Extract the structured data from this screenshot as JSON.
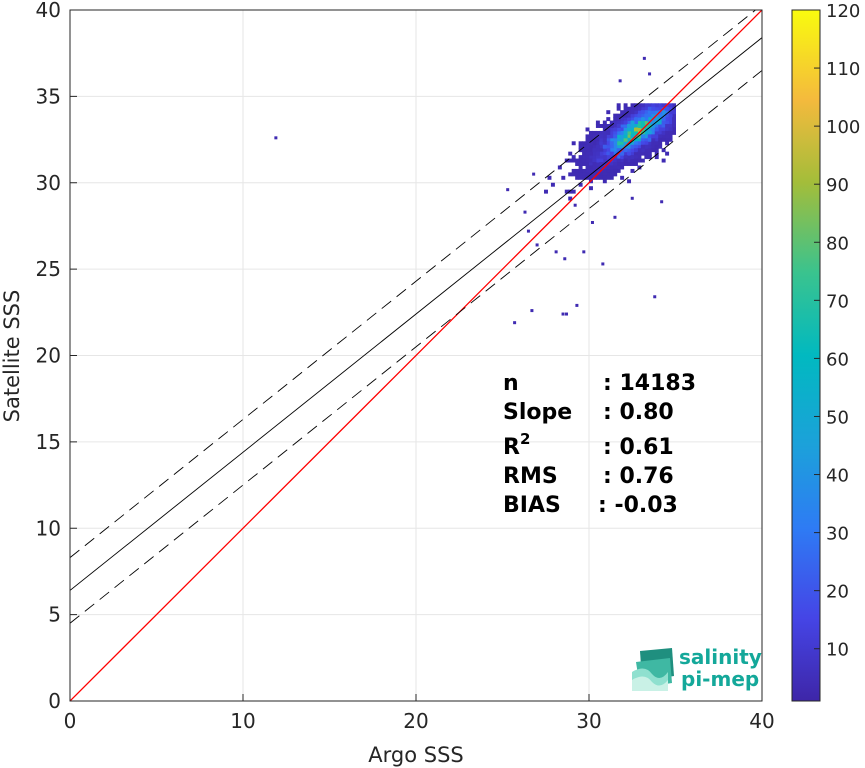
{
  "chart_data": {
    "type": "scatter",
    "subtype": "2d-density-histogram",
    "title": "",
    "xlabel": "Argo SSS",
    "ylabel": "Satellite SSS",
    "xlim": [
      0,
      40
    ],
    "ylim": [
      0,
      40
    ],
    "xticks": [
      0,
      10,
      20,
      30,
      40
    ],
    "yticks": [
      0,
      5,
      10,
      15,
      20,
      25,
      30,
      35,
      40
    ],
    "grid": true,
    "colorbar": {
      "colormap": "parula",
      "min": 1,
      "max": 120,
      "ticks": [
        10,
        20,
        30,
        40,
        50,
        60,
        70,
        80,
        90,
        100,
        110,
        120
      ]
    },
    "lines": [
      {
        "name": "1:1",
        "color": "#ff0000",
        "style": "solid",
        "x": [
          0,
          40
        ],
        "y": [
          0,
          40
        ]
      },
      {
        "name": "fit",
        "color": "#000000",
        "style": "solid",
        "x": [
          0,
          40
        ],
        "y": [
          6.4,
          38.4
        ]
      },
      {
        "name": "fit+",
        "color": "#000000",
        "style": "dashed",
        "x": [
          0,
          40
        ],
        "y": [
          8.3,
          40.3
        ]
      },
      {
        "name": "fit-",
        "color": "#000000",
        "style": "dashed",
        "x": [
          0,
          40
        ],
        "y": [
          4.5,
          36.5
        ]
      }
    ],
    "density": {
      "center": [
        32.8,
        33.0
      ],
      "spread_x": 1.25,
      "spread_y": 0.95,
      "correlation": 0.75,
      "count": 14183
    },
    "outliers": [
      [
        11.9,
        32.6
      ],
      [
        25.7,
        21.9
      ],
      [
        26.7,
        22.6
      ],
      [
        28.5,
        22.4
      ],
      [
        28.7,
        22.4
      ],
      [
        33.8,
        23.4
      ],
      [
        29.3,
        22.9
      ],
      [
        25.3,
        29.6
      ],
      [
        33.2,
        37.2
      ],
      [
        26.5,
        27.2
      ],
      [
        28.6,
        25.6
      ],
      [
        30.8,
        25.3
      ],
      [
        29.7,
        26.0
      ],
      [
        34.2,
        28.9
      ],
      [
        26.3,
        28.3
      ],
      [
        27.0,
        26.4
      ],
      [
        29.2,
        28.7
      ],
      [
        28.1,
        26.0
      ],
      [
        31.8,
        35.9
      ],
      [
        33.5,
        36.3
      ],
      [
        30.2,
        27.7
      ],
      [
        31.5,
        28.0
      ],
      [
        26.8,
        30.5
      ],
      [
        32.5,
        29.1
      ]
    ],
    "stats": [
      {
        "label": "n",
        "value": ": 14183"
      },
      {
        "label": "Slope",
        "value": ": 0.80"
      },
      {
        "label": "R",
        "sup": "2",
        "value": ": 0.61"
      },
      {
        "label": "RMS",
        "value": ": 0.76"
      },
      {
        "label": "BIAS",
        "value": ": -0.03"
      }
    ]
  },
  "logo": {
    "line1": "salinity",
    "line2": "pi-mep",
    "color": "#14a89a"
  }
}
